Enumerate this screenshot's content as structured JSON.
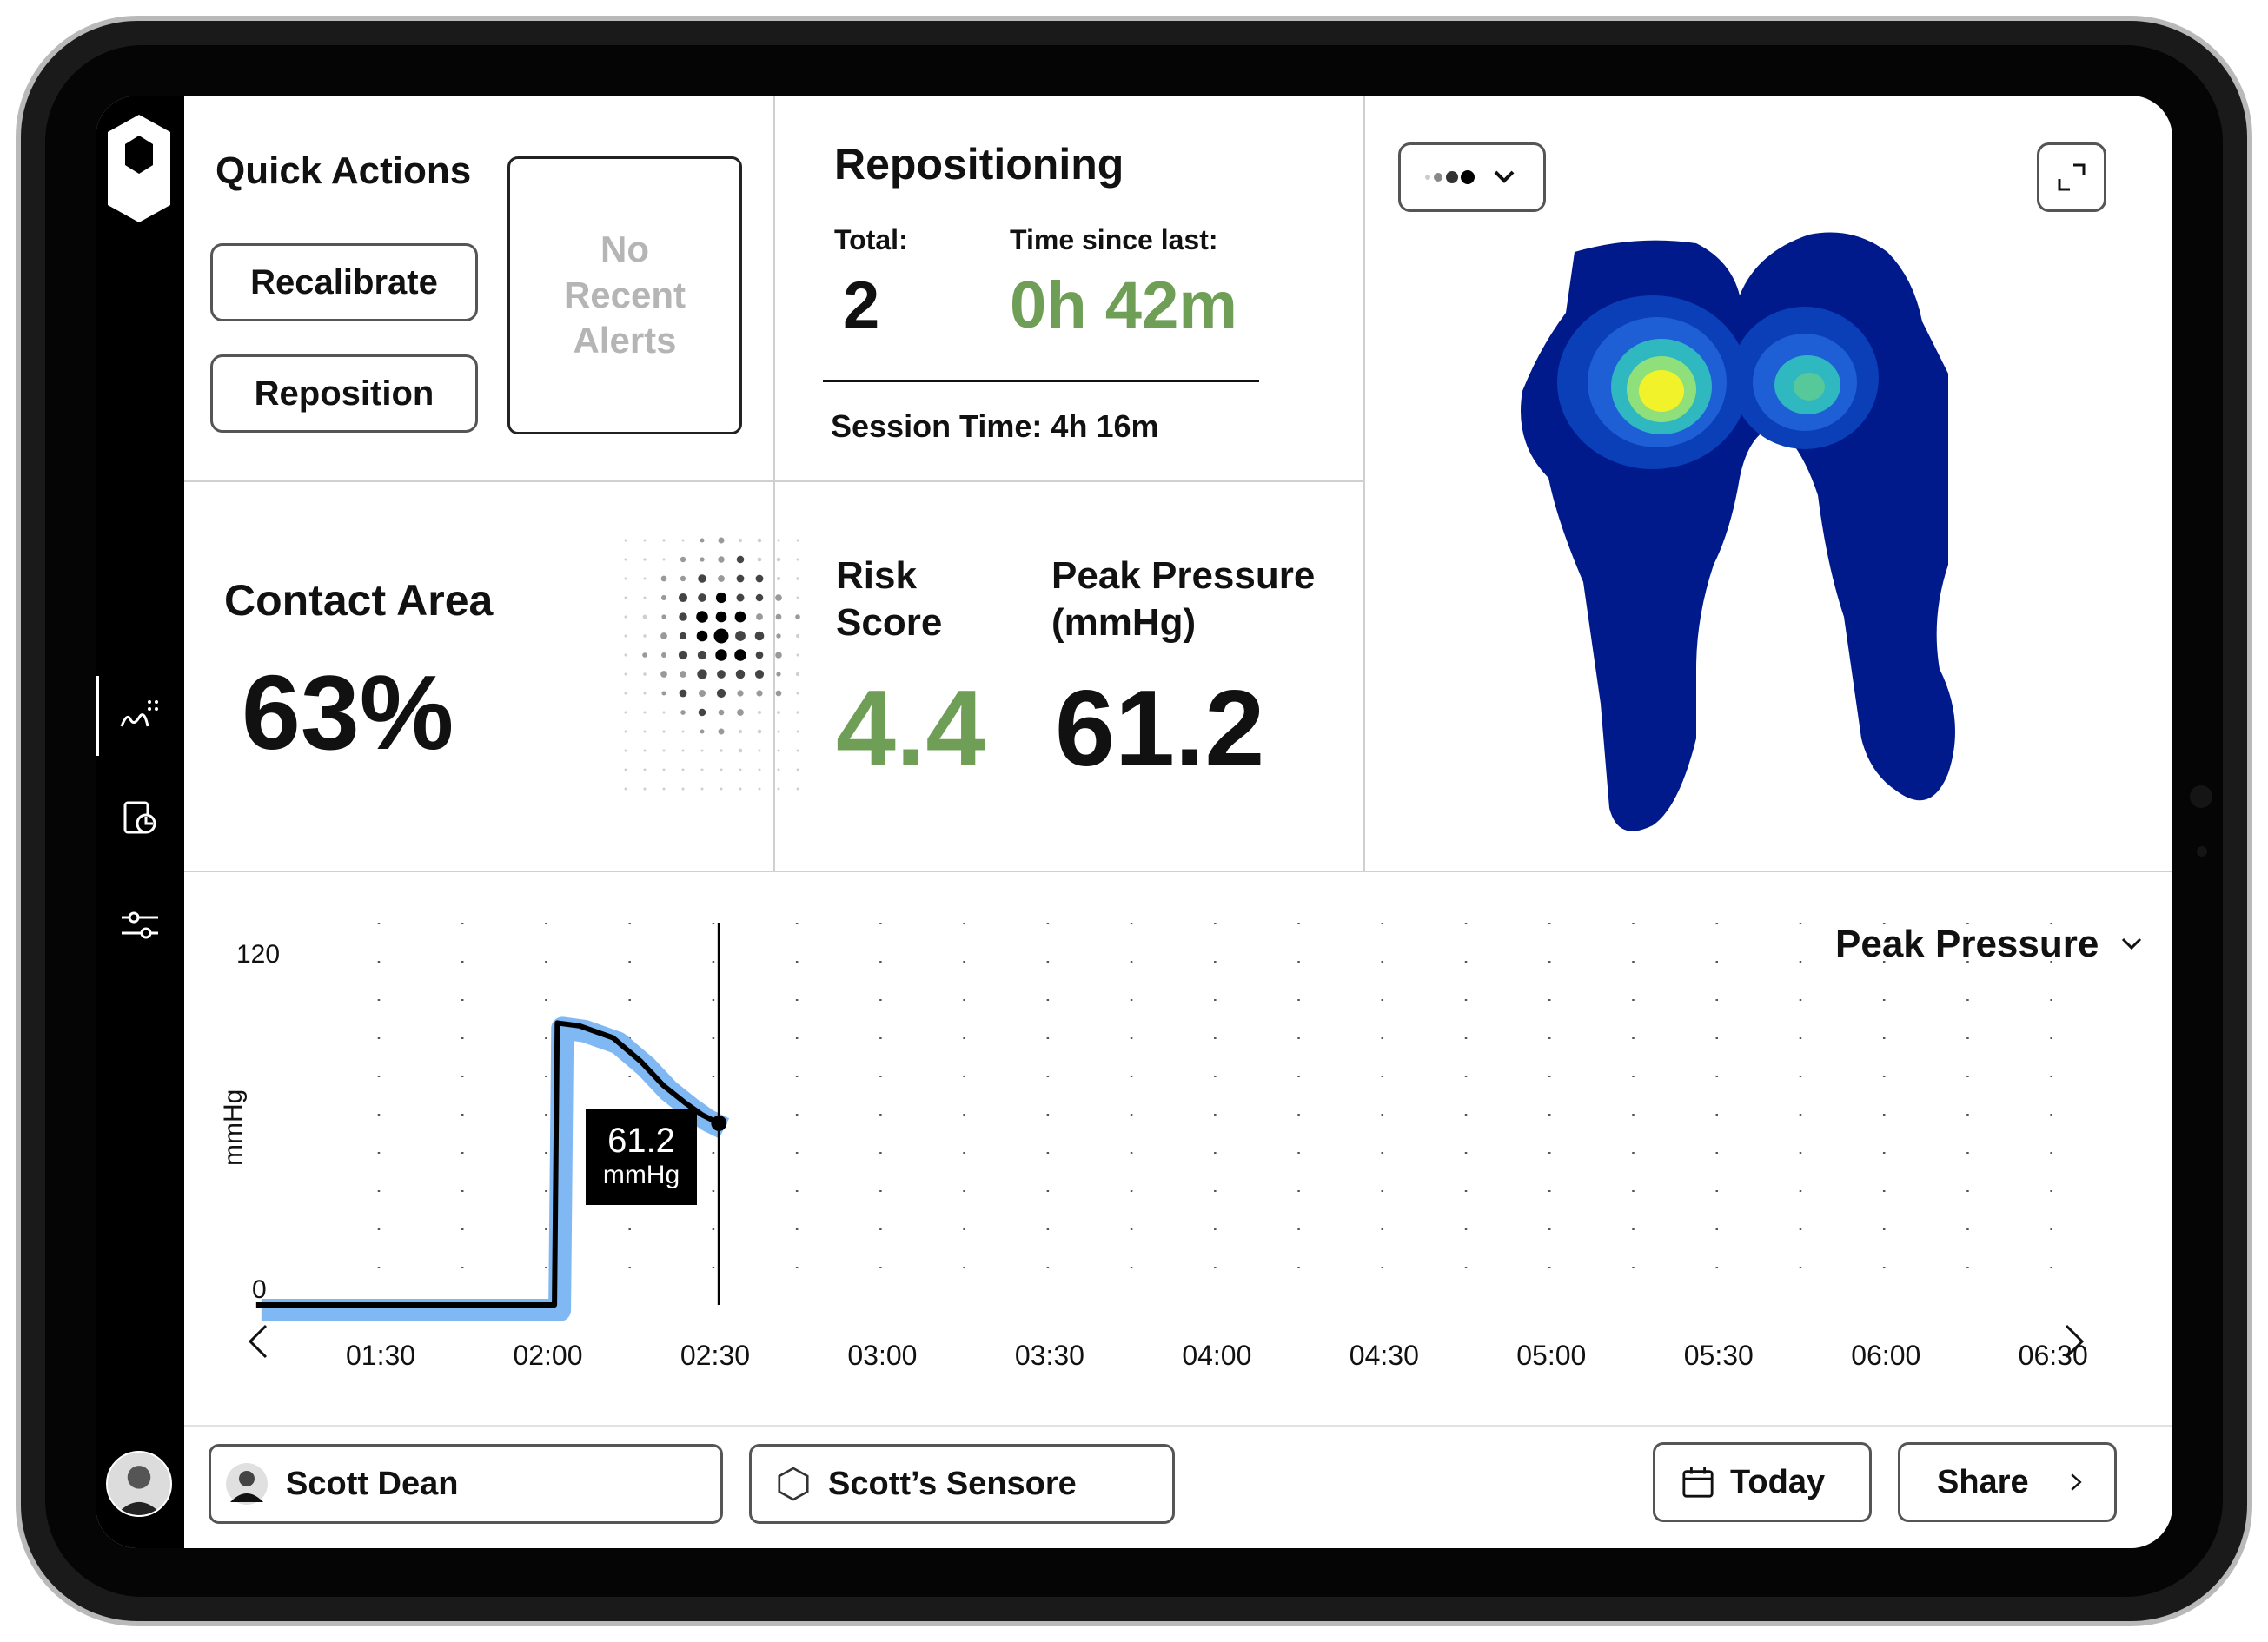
{
  "quick_actions": {
    "title": "Quick Actions",
    "recalibrate_label": "Recalibrate",
    "reposition_label": "Reposition",
    "alerts_text": "No Recent Alerts"
  },
  "repositioning": {
    "title": "Repositioning",
    "total_label": "Total:",
    "total_value": "2",
    "time_since_label": "Time since last:",
    "time_since_value": "0h 42m",
    "session_time": "Session Time: 4h 16m"
  },
  "contact_area": {
    "title": "Contact Area",
    "value": "63%"
  },
  "risk": {
    "risk_label_line1": "Risk",
    "risk_label_line2": "Score",
    "risk_value": "4.4",
    "peak_label_line1": "Peak Pressure",
    "peak_label_line2": "(mmHg)",
    "peak_value": "61.2"
  },
  "chart_data": {
    "type": "line",
    "title": "",
    "ylabel": "mmHg",
    "xlabel": "",
    "ylim": [
      0,
      120
    ],
    "y_ticks": [
      "120",
      "0"
    ],
    "x_ticks": [
      "01:30",
      "02:00",
      "02:30",
      "03:00",
      "03:30",
      "04:00",
      "04:30",
      "05:00",
      "05:30",
      "06:00",
      "06:30"
    ],
    "x_tick_minutes": [
      90,
      120,
      150,
      180,
      210,
      240,
      270,
      300,
      330,
      360,
      390
    ],
    "x_range_minutes": [
      66,
      398
    ],
    "series": [
      {
        "x_minutes": [
          68,
          80,
          95,
          110,
          118,
          121.5,
          122,
          126,
          132,
          137,
          141,
          145,
          148,
          151
        ],
        "values": [
          0,
          0,
          0,
          0,
          0,
          0,
          95,
          94,
          90,
          82,
          74,
          68,
          64,
          61.2
        ]
      }
    ],
    "tooltip_value": "61.2",
    "tooltip_unit": "mmHg",
    "metric_selector": "Peak Pressure",
    "colors": {
      "line": "#000000",
      "band": "#7fb8f2"
    }
  },
  "bottom_bar": {
    "patient_name": "Scott Dean",
    "sensor_name": "Scott’s Sensore",
    "date_label": "Today",
    "share_label": "Share"
  },
  "heatmap": {
    "colors": {
      "low": "#001a8c",
      "mid": "#1f5fd6",
      "high": "#2fb8c0",
      "peak": "#f2f22a"
    }
  }
}
